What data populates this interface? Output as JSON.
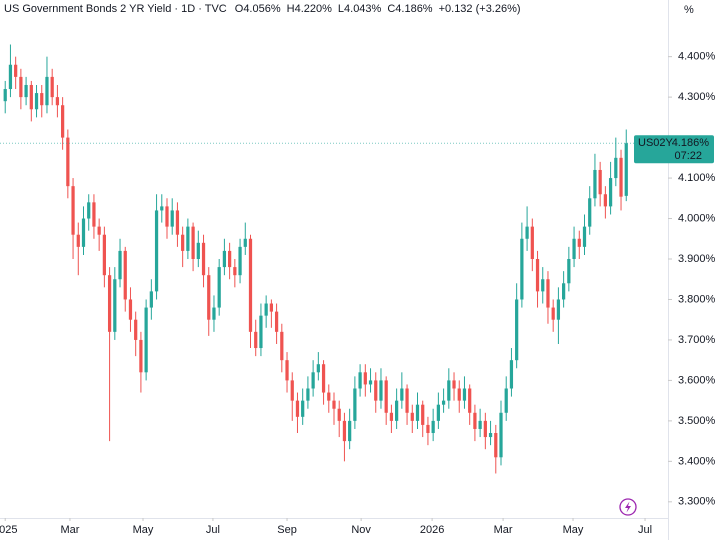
{
  "chart_data": {
    "type": "candlestick",
    "title": "US Government Bonds 2 YR Yield · 1D · TVC",
    "header": [
      {
        "label": "O",
        "text": "4.056%"
      },
      {
        "label": "H",
        "text": "4.220%"
      },
      {
        "label": "L",
        "text": "4.043%"
      },
      {
        "label": "C",
        "text": "4.186%"
      }
    ],
    "change": "+0.132 (+3.26%)",
    "y_unit": "%",
    "symbol": "US02Y",
    "last_price_label": "4.186%",
    "countdown": "07:22",
    "up_color": "#26a69a",
    "down_color": "#ef5350",
    "ylim": [
      3.26,
      4.54
    ],
    "yticks": [
      {
        "value": 3.3,
        "label": "3.300%"
      },
      {
        "value": 3.4,
        "label": "3.400%"
      },
      {
        "value": 3.5,
        "label": "3.500%"
      },
      {
        "value": 3.6,
        "label": "3.600%"
      },
      {
        "value": 3.7,
        "label": "3.700%"
      },
      {
        "value": 3.8,
        "label": "3.800%"
      },
      {
        "value": 3.9,
        "label": "3.900%"
      },
      {
        "value": 4.0,
        "label": "4.000%"
      },
      {
        "value": 4.1,
        "label": "4.100%"
      },
      {
        "value": 4.3,
        "label": "4.300%"
      },
      {
        "value": 4.4,
        "label": "4.400%"
      }
    ],
    "xlim": [
      -1,
      127
    ],
    "xticks": [
      {
        "value": 0,
        "label": "2025"
      },
      {
        "value": 12.4,
        "label": "Mar"
      },
      {
        "value": 26.4,
        "label": "May"
      },
      {
        "value": 39.8,
        "label": "Jul"
      },
      {
        "value": 54,
        "label": "Sep"
      },
      {
        "value": 68.2,
        "label": "Nov"
      },
      {
        "value": 81.8,
        "label": "2026"
      },
      {
        "value": 95.4,
        "label": "Mar"
      },
      {
        "value": 108.8,
        "label": "May"
      },
      {
        "value": 122.6,
        "label": "Jul"
      }
    ],
    "ohlc": [
      [
        4.29,
        4.34,
        4.26,
        4.32
      ],
      [
        4.32,
        4.43,
        4.3,
        4.38
      ],
      [
        4.38,
        4.4,
        4.32,
        4.35
      ],
      [
        4.35,
        4.37,
        4.27,
        4.3
      ],
      [
        4.3,
        4.35,
        4.28,
        4.33
      ],
      [
        4.33,
        4.34,
        4.24,
        4.27
      ],
      [
        4.27,
        4.33,
        4.25,
        4.31
      ],
      [
        4.31,
        4.33,
        4.25,
        4.28
      ],
      [
        4.28,
        4.4,
        4.26,
        4.35
      ],
      [
        4.35,
        4.37,
        4.28,
        4.3
      ],
      [
        4.3,
        4.33,
        4.25,
        4.28
      ],
      [
        4.28,
        4.3,
        4.17,
        4.2
      ],
      [
        4.2,
        4.22,
        4.05,
        4.08
      ],
      [
        4.08,
        4.1,
        3.9,
        3.96
      ],
      [
        3.96,
        3.99,
        3.86,
        3.93
      ],
      [
        3.93,
        4.03,
        3.91,
        4.0
      ],
      [
        4.0,
        4.06,
        3.97,
        4.04
      ],
      [
        4.04,
        4.06,
        3.95,
        3.98
      ],
      [
        3.98,
        4.0,
        3.92,
        3.96
      ],
      [
        3.96,
        3.98,
        3.83,
        3.86
      ],
      [
        3.86,
        3.88,
        3.45,
        3.72
      ],
      [
        3.72,
        3.88,
        3.7,
        3.85
      ],
      [
        3.85,
        3.95,
        3.83,
        3.92
      ],
      [
        3.92,
        3.93,
        3.77,
        3.8
      ],
      [
        3.8,
        3.83,
        3.72,
        3.75
      ],
      [
        3.75,
        3.77,
        3.66,
        3.7
      ],
      [
        3.7,
        3.72,
        3.57,
        3.62
      ],
      [
        3.62,
        3.8,
        3.6,
        3.78
      ],
      [
        3.78,
        3.85,
        3.75,
        3.82
      ],
      [
        3.82,
        4.06,
        3.8,
        4.02
      ],
      [
        4.02,
        4.06,
        3.99,
        4.03
      ],
      [
        4.03,
        4.05,
        3.95,
        3.98
      ],
      [
        3.98,
        4.05,
        3.96,
        4.02
      ],
      [
        4.02,
        4.04,
        3.93,
        3.96
      ],
      [
        3.96,
        3.98,
        3.88,
        3.92
      ],
      [
        3.92,
        4.0,
        3.9,
        3.98
      ],
      [
        3.98,
        3.99,
        3.87,
        3.9
      ],
      [
        3.9,
        3.97,
        3.88,
        3.94
      ],
      [
        3.94,
        3.96,
        3.83,
        3.86
      ],
      [
        3.86,
        3.88,
        3.71,
        3.75
      ],
      [
        3.75,
        3.81,
        3.72,
        3.78
      ],
      [
        3.78,
        3.9,
        3.76,
        3.88
      ],
      [
        3.88,
        3.95,
        3.86,
        3.92
      ],
      [
        3.92,
        3.94,
        3.85,
        3.88
      ],
      [
        3.88,
        3.9,
        3.83,
        3.86
      ],
      [
        3.86,
        3.95,
        3.84,
        3.93
      ],
      [
        3.93,
        3.99,
        3.91,
        3.95
      ],
      [
        3.95,
        3.96,
        3.68,
        3.72
      ],
      [
        3.72,
        3.75,
        3.66,
        3.68
      ],
      [
        3.68,
        3.79,
        3.66,
        3.76
      ],
      [
        3.76,
        3.81,
        3.73,
        3.79
      ],
      [
        3.79,
        3.8,
        3.73,
        3.77
      ],
      [
        3.77,
        3.79,
        3.69,
        3.72
      ],
      [
        3.72,
        3.74,
        3.62,
        3.65
      ],
      [
        3.65,
        3.67,
        3.57,
        3.6
      ],
      [
        3.6,
        3.62,
        3.5,
        3.55
      ],
      [
        3.55,
        3.57,
        3.47,
        3.51
      ],
      [
        3.51,
        3.58,
        3.49,
        3.55
      ],
      [
        3.55,
        3.61,
        3.53,
        3.58
      ],
      [
        3.58,
        3.65,
        3.56,
        3.62
      ],
      [
        3.62,
        3.67,
        3.6,
        3.64
      ],
      [
        3.64,
        3.65,
        3.54,
        3.57
      ],
      [
        3.57,
        3.59,
        3.52,
        3.55
      ],
      [
        3.55,
        3.57,
        3.49,
        3.53
      ],
      [
        3.53,
        3.55,
        3.46,
        3.5
      ],
      [
        3.5,
        3.52,
        3.4,
        3.45
      ],
      [
        3.45,
        3.53,
        3.43,
        3.5
      ],
      [
        3.5,
        3.61,
        3.48,
        3.58
      ],
      [
        3.58,
        3.64,
        3.56,
        3.62
      ],
      [
        3.62,
        3.64,
        3.56,
        3.59
      ],
      [
        3.59,
        3.63,
        3.57,
        3.6
      ],
      [
        3.6,
        3.62,
        3.52,
        3.55
      ],
      [
        3.55,
        3.63,
        3.53,
        3.6
      ],
      [
        3.6,
        3.61,
        3.49,
        3.52
      ],
      [
        3.52,
        3.54,
        3.47,
        3.5
      ],
      [
        3.5,
        3.58,
        3.48,
        3.55
      ],
      [
        3.55,
        3.62,
        3.53,
        3.58
      ],
      [
        3.58,
        3.59,
        3.49,
        3.52
      ],
      [
        3.52,
        3.54,
        3.47,
        3.5
      ],
      [
        3.5,
        3.57,
        3.48,
        3.54
      ],
      [
        3.54,
        3.55,
        3.46,
        3.49
      ],
      [
        3.49,
        3.51,
        3.44,
        3.47
      ],
      [
        3.47,
        3.53,
        3.45,
        3.5
      ],
      [
        3.5,
        3.57,
        3.48,
        3.54
      ],
      [
        3.54,
        3.58,
        3.52,
        3.55
      ],
      [
        3.55,
        3.63,
        3.53,
        3.6
      ],
      [
        3.6,
        3.62,
        3.55,
        3.58
      ],
      [
        3.58,
        3.6,
        3.52,
        3.55
      ],
      [
        3.55,
        3.61,
        3.53,
        3.58
      ],
      [
        3.58,
        3.59,
        3.49,
        3.52
      ],
      [
        3.52,
        3.54,
        3.45,
        3.48
      ],
      [
        3.48,
        3.53,
        3.46,
        3.5
      ],
      [
        3.5,
        3.52,
        3.43,
        3.46
      ],
      [
        3.46,
        3.5,
        3.44,
        3.47
      ],
      [
        3.47,
        3.49,
        3.37,
        3.41
      ],
      [
        3.41,
        3.55,
        3.39,
        3.52
      ],
      [
        3.52,
        3.61,
        3.5,
        3.58
      ],
      [
        3.58,
        3.68,
        3.56,
        3.65
      ],
      [
        3.65,
        3.84,
        3.63,
        3.8
      ],
      [
        3.8,
        3.99,
        3.78,
        3.95
      ],
      [
        3.95,
        4.03,
        3.92,
        3.98
      ],
      [
        3.98,
        4.0,
        3.87,
        3.9
      ],
      [
        3.9,
        3.92,
        3.78,
        3.82
      ],
      [
        3.82,
        3.88,
        3.79,
        3.85
      ],
      [
        3.85,
        3.87,
        3.74,
        3.78
      ],
      [
        3.78,
        3.8,
        3.72,
        3.75
      ],
      [
        3.75,
        3.83,
        3.69,
        3.8
      ],
      [
        3.8,
        3.87,
        3.78,
        3.84
      ],
      [
        3.84,
        3.93,
        3.82,
        3.9
      ],
      [
        3.9,
        3.98,
        3.88,
        3.95
      ],
      [
        3.95,
        3.97,
        3.9,
        3.93
      ],
      [
        3.93,
        4.01,
        3.91,
        3.98
      ],
      [
        3.98,
        4.08,
        3.96,
        4.05
      ],
      [
        4.05,
        4.16,
        4.03,
        4.12
      ],
      [
        4.12,
        4.14,
        4.03,
        4.06
      ],
      [
        4.06,
        4.08,
        4.0,
        4.03
      ],
      [
        4.03,
        4.14,
        4.01,
        4.1
      ],
      [
        4.1,
        4.2,
        4.08,
        4.15
      ],
      [
        4.15,
        4.17,
        4.02,
        4.054
      ],
      [
        4.056,
        4.22,
        4.043,
        4.186
      ]
    ]
  }
}
